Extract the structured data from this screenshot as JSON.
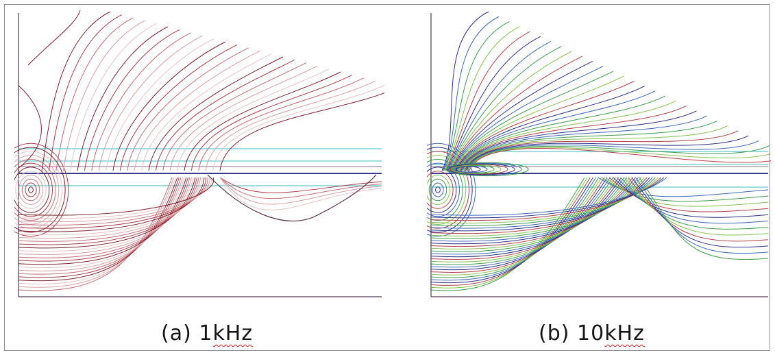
{
  "panels": [
    {
      "id": "a",
      "prefix": "(a)",
      "number": "1",
      "unit": "kHz",
      "palette": [
        "#7d1f2b",
        "#a83a45",
        "#c46b73",
        "#d79da2",
        "#e6c2c5"
      ],
      "axis_color": "#6f5b72",
      "guide_color": "#5fc9cf"
    },
    {
      "id": "b",
      "prefix": "(b)",
      "number": "10",
      "unit": "kHz",
      "palette": [
        "#2a2f86",
        "#3b67b8",
        "#3a9d4a",
        "#84c24d",
        "#b23e46"
      ],
      "axis_color": "#6f5b72",
      "guide_color": "#5fc9cf"
    }
  ]
}
